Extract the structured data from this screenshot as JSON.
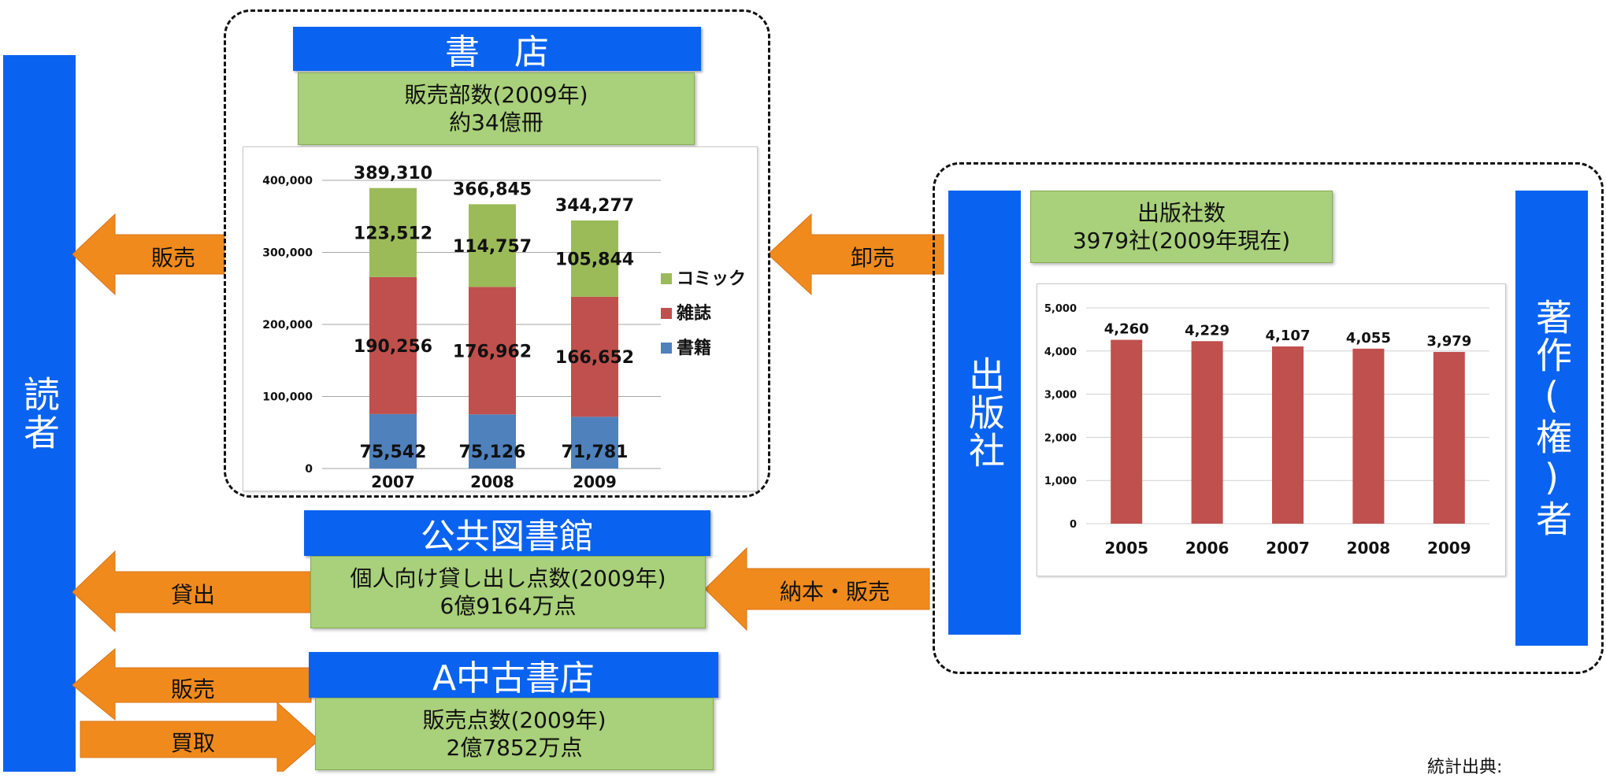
{
  "reader": {
    "label": "読者"
  },
  "publisher": {
    "label": "出版社"
  },
  "author": {
    "label": "著作(権)者"
  },
  "bookstore": {
    "header": "書　店",
    "info_line1": "販売部数(2009年)",
    "info_line2": "約34億冊"
  },
  "library": {
    "header": "公共図書館",
    "info_line1": "個人向け貸し出し点数(2009年)",
    "info_line2": "6億9164万点"
  },
  "used_store": {
    "header": "A中古書店",
    "info_line1": "販売点数(2009年)",
    "info_line2": "2億7852万点"
  },
  "publisher_info": {
    "line1": "出版社数",
    "line2": "3979社(2009年現在)"
  },
  "arrows": {
    "sales_top": "販売",
    "wholesale": "卸売",
    "lending": "貸出",
    "delivery_sales": "納本・販売",
    "sales_used": "販売",
    "buyback": "買取"
  },
  "colors": {
    "blue": "#0a63f0",
    "green": "#a9d07a",
    "orange": "#f08a1d",
    "books": "#4f81bd",
    "magazines": "#c0504d",
    "comics": "#9bbb59"
  },
  "source_text": "統計出典:",
  "chart_data": [
    {
      "type": "bar",
      "stacked": true,
      "categories": [
        "2007",
        "2008",
        "2009"
      ],
      "series": [
        {
          "name": "書籍",
          "values": [
            75542,
            75126,
            71781
          ]
        },
        {
          "name": "雑誌",
          "values": [
            190256,
            176962,
            166652
          ]
        },
        {
          "name": "コミック",
          "values": [
            123512,
            114757,
            105844
          ]
        }
      ],
      "totals": [
        389310,
        366845,
        344277
      ],
      "ylim": [
        0,
        400000
      ],
      "yticks": [
        "0",
        "100,000",
        "200,000",
        "300,000",
        "400,000"
      ],
      "legend": "right",
      "grid": true
    },
    {
      "type": "bar",
      "categories": [
        "2005",
        "2006",
        "2007",
        "2008",
        "2009"
      ],
      "values": [
        4260,
        4229,
        4107,
        4055,
        3979
      ],
      "value_labels": [
        "4,260",
        "4,229",
        "4,107",
        "4,055",
        "3,979"
      ],
      "ylim": [
        0,
        5000
      ],
      "yticks": [
        "0",
        "1,000",
        "2,000",
        "3,000",
        "4,000",
        "5,000"
      ],
      "grid": true
    }
  ]
}
